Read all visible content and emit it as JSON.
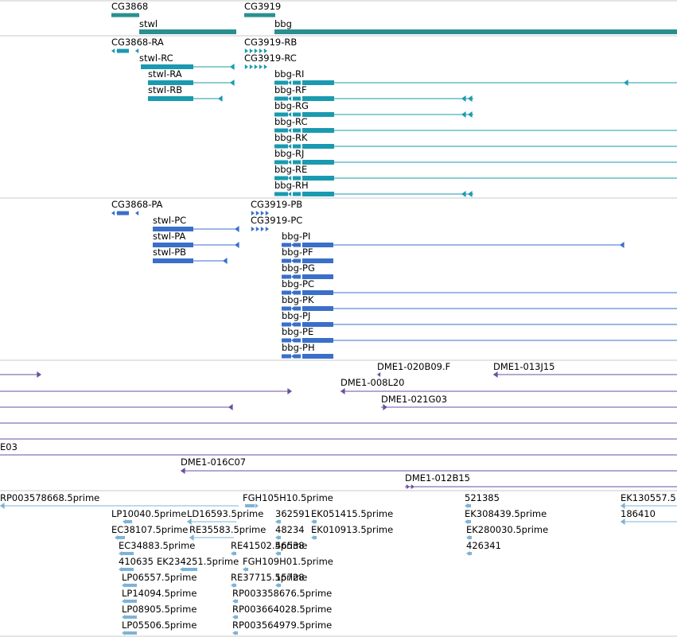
{
  "colors": {
    "gene": "#2a8f8f",
    "transcript": "#1a9ab0",
    "protein": "#3a6fca",
    "clone": "#6a4fa0",
    "est": "#7fb3d6",
    "divider": "#c8c8c8"
  },
  "tracks": {
    "genes": {
      "labels": [
        "CG3868",
        "stwl",
        "CG3919",
        "bbg"
      ]
    },
    "transcripts": {
      "labels": [
        "CG3868-RA",
        "stwl-RC",
        "stwl-RA",
        "stwl-RB",
        "CG3919-RB",
        "CG3919-RC",
        "bbg-RI",
        "bbg-RF",
        "bbg-RG",
        "bbg-RC",
        "bbg-RK",
        "bbg-RJ",
        "bbg-RE",
        "bbg-RH"
      ]
    },
    "proteins": {
      "labels": [
        "CG3868-PA",
        "stwl-PC",
        "stwl-PA",
        "stwl-PB",
        "CG3919-PB",
        "CG3919-PC",
        "bbg-PI",
        "bbg-PF",
        "bbg-PG",
        "bbg-PC",
        "bbg-PK",
        "bbg-PJ",
        "bbg-PE",
        "bbg-PH"
      ]
    },
    "clones": {
      "labels": [
        "DME1-020B09.F",
        "DME1-013J15",
        "DME1-008L20",
        "DME1-021G03",
        "E03",
        "DME1-016C07",
        "DME1-012B15"
      ]
    },
    "ests": {
      "labels": [
        "RP003578668.5prime",
        "FGH105H10.5prime",
        "521385",
        "EK130557.5",
        "LP10040.5prime",
        "LD16593.5prime",
        "362591",
        "EK051415.5prime",
        "EK308439.5prime",
        "186410",
        "EC38107.5prime",
        "RE35583.5prime",
        "48234",
        "EK010913.5prime",
        "EK280030.5prime",
        "EC34883.5prime",
        "RE41502.5prime",
        "46538",
        "426341",
        "410635",
        "EK234251.5prime",
        "FGH109H01.5prime",
        "LP06557.5prime",
        "RE37715.5prime",
        "15728",
        "LP14094.5prime",
        "RP003358676.5prime",
        "LP08905.5prime",
        "RP003664028.5prime",
        "LP05506.5prime",
        "RP003564979.5prime"
      ]
    }
  }
}
